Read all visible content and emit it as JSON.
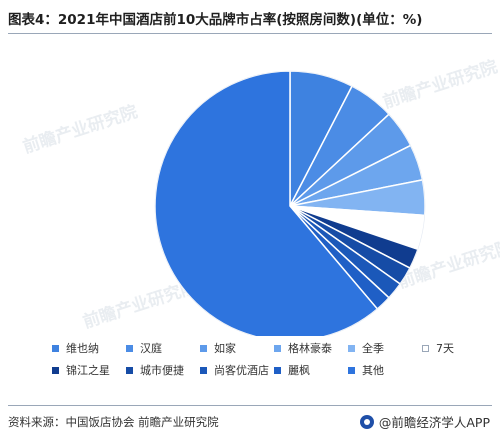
{
  "title": "图表4：2021年中国酒店前10大品牌市占率(按照房间数)(单位：%)",
  "source": "资料来源：中国饭店协会 前瞻产业研究院",
  "brand": "@前瞻经济学人APP",
  "watermark": "前瞻产业研究院",
  "colors": {
    "primary": "#1f63d1",
    "accent": "#2e74de"
  },
  "chart_data": {
    "type": "pie",
    "start_angle_deg": 0,
    "direction": "clockwise",
    "legend_position": "bottom",
    "slices": [
      {
        "label": "维也纳",
        "value": 7.6,
        "color": "#3e82e0"
      },
      {
        "label": "汉庭",
        "value": 5.5,
        "color": "#4b8ce5"
      },
      {
        "label": "如家",
        "value": 4.5,
        "color": "#5d9aea"
      },
      {
        "label": "格林豪泰",
        "value": 4.3,
        "color": "#6da6ee"
      },
      {
        "label": "全季",
        "value": 4.2,
        "color": "#82b4f2"
      },
      {
        "label": "7天",
        "value": 4.1,
        "color": "#ffffff"
      },
      {
        "label": "锦江之星",
        "value": 2.4,
        "color": "#103c8f"
      },
      {
        "label": "城市便捷",
        "value": 2.2,
        "color": "#164ca6"
      },
      {
        "label": "尚客优酒店",
        "value": 2.1,
        "color": "#1b58b9"
      },
      {
        "label": "麗枫",
        "value": 1.9,
        "color": "#1f5fc6"
      },
      {
        "label": "其他",
        "value": 61.2,
        "color": "#2e74de"
      }
    ]
  }
}
